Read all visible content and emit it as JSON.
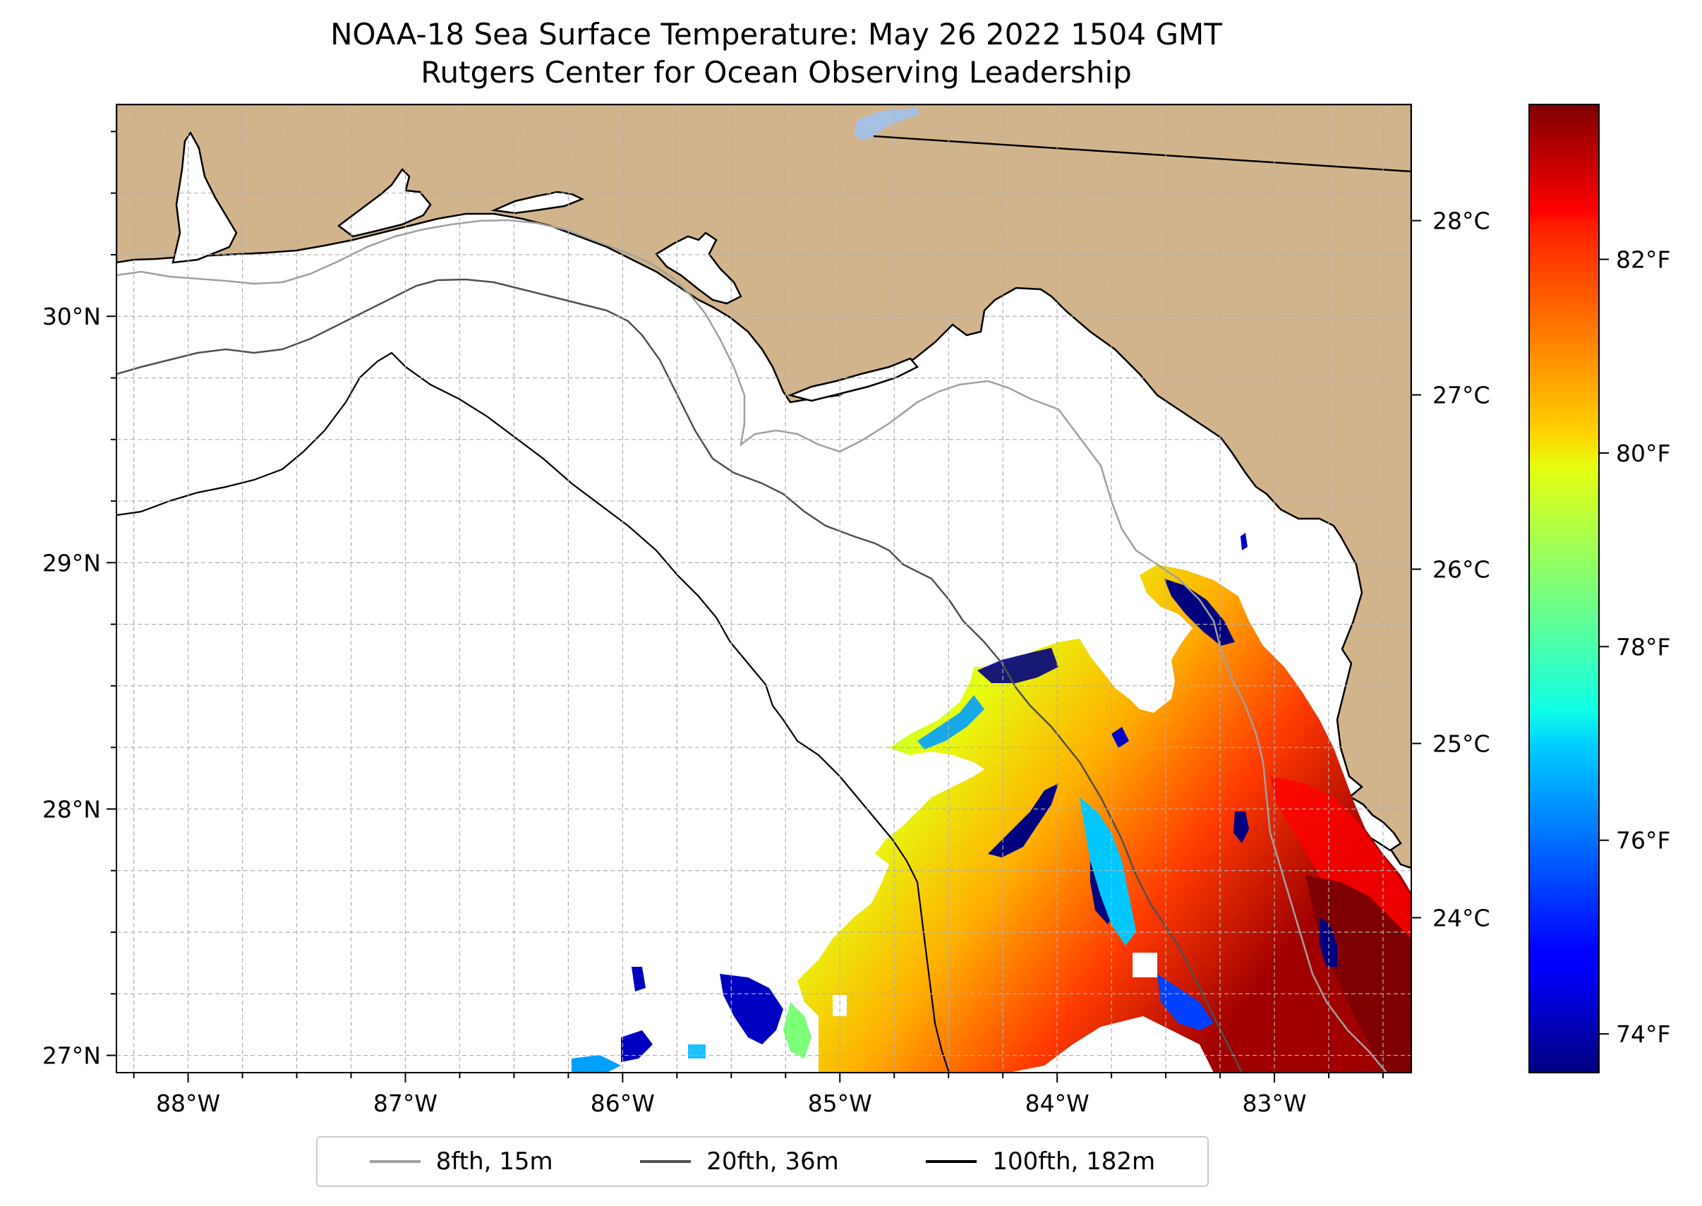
{
  "figure": {
    "title_line1": "NOAA-18 Sea Surface Temperature: May 26 2022 1504 GMT",
    "title_line2": "Rutgers Center for Ocean Observing Leadership"
  },
  "map": {
    "lon_range": [
      -88.33,
      -82.37
    ],
    "lat_range": [
      26.93,
      30.86
    ],
    "lon_ticks": [
      {
        "value": -88,
        "label": "88°W"
      },
      {
        "value": -87,
        "label": "87°W"
      },
      {
        "value": -86,
        "label": "86°W"
      },
      {
        "value": -85,
        "label": "85°W"
      },
      {
        "value": -84,
        "label": "84°W"
      },
      {
        "value": -83,
        "label": "83°W"
      }
    ],
    "lat_ticks": [
      {
        "value": 27,
        "label": "27°N"
      },
      {
        "value": 28,
        "label": "28°N"
      },
      {
        "value": 29,
        "label": "29°N"
      },
      {
        "value": 30,
        "label": "30°N"
      }
    ],
    "land_color": "#d2b48c",
    "ocean_color": "#ffffff",
    "lake_color": "#a6c1e6"
  },
  "colorbar": {
    "cmap": "jet",
    "range_f": [
      73.6,
      83.6
    ],
    "fahrenheit_ticks": [
      {
        "value": 74,
        "label": "74°F"
      },
      {
        "value": 76,
        "label": "76°F"
      },
      {
        "value": 78,
        "label": "78°F"
      },
      {
        "value": 80,
        "label": "80°F"
      },
      {
        "value": 82,
        "label": "82°F"
      }
    ],
    "celsius_ticks": [
      {
        "value": 24,
        "label": "24°C"
      },
      {
        "value": 25,
        "label": "25°C"
      },
      {
        "value": 26,
        "label": "26°C"
      },
      {
        "value": 27,
        "label": "27°C"
      },
      {
        "value": 28,
        "label": "28°C"
      }
    ]
  },
  "legend": {
    "entries": [
      {
        "label": "8fth, 15m",
        "color": "#a0a0a0"
      },
      {
        "label": "20fth, 36m",
        "color": "#505050"
      },
      {
        "label": "100fth, 182m",
        "color": "#000000"
      }
    ]
  }
}
